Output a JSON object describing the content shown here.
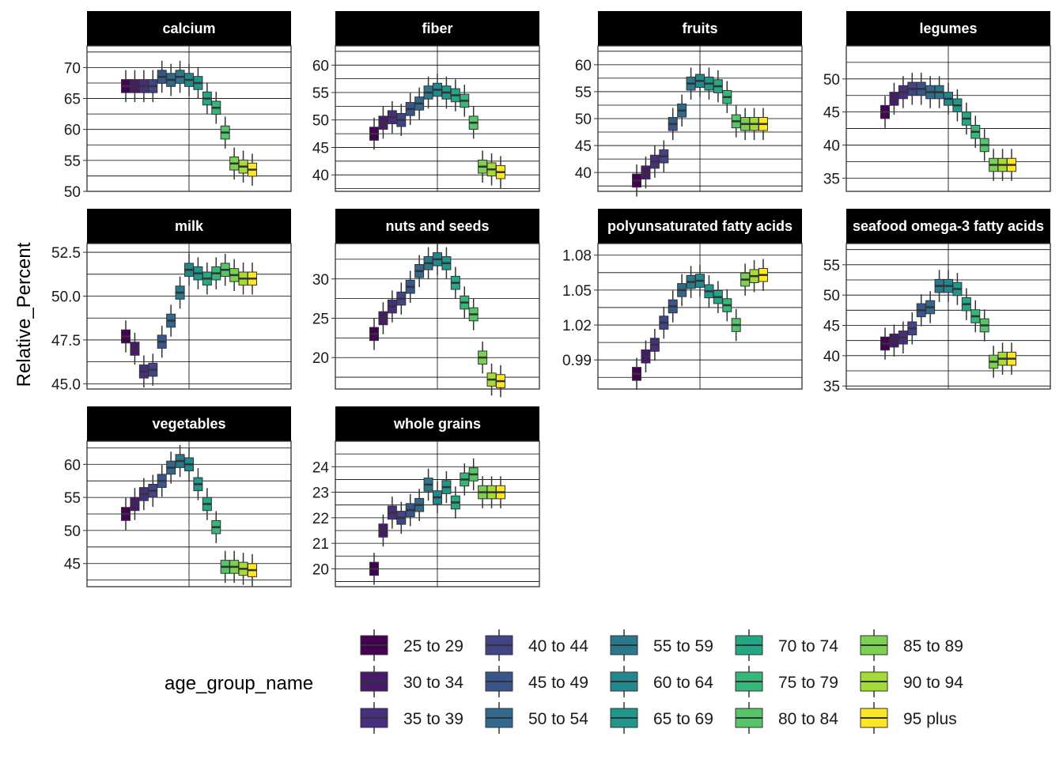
{
  "chart_data": {
    "type": "box",
    "ylabel": "Relative_Percent",
    "legend": {
      "title": "age_group_name",
      "placement": "bottom",
      "entries": [
        {
          "label": "25 to 29",
          "color": "#440154"
        },
        {
          "label": "30 to 34",
          "color": "#481A6C"
        },
        {
          "label": "35 to 39",
          "color": "#472F7D"
        },
        {
          "label": "40 to 44",
          "color": "#414487"
        },
        {
          "label": "45 to 49",
          "color": "#39568C"
        },
        {
          "label": "50 to 54",
          "color": "#31688E"
        },
        {
          "label": "55 to 59",
          "color": "#2A788E"
        },
        {
          "label": "60 to 64",
          "color": "#23888E"
        },
        {
          "label": "65 to 69",
          "color": "#1F988B"
        },
        {
          "label": "70 to 74",
          "color": "#22A884"
        },
        {
          "label": "75 to 79",
          "color": "#35B779"
        },
        {
          "label": "80 to 84",
          "color": "#54C568"
        },
        {
          "label": "85 to 89",
          "color": "#7AD151"
        },
        {
          "label": "90 to 94",
          "color": "#A5DB36"
        },
        {
          "label": "95 plus",
          "color": "#FDE725"
        }
      ]
    },
    "panels": [
      {
        "title": "calcium",
        "ylim": [
          50,
          73.5
        ],
        "ticks": [
          50,
          55,
          60,
          65,
          70
        ],
        "tick_labels": [
          "50",
          "55",
          "60",
          "65",
          "70"
        ],
        "medians": [
          67,
          67,
          67,
          67,
          68.5,
          68,
          68.5,
          68,
          67.5,
          65,
          63.5,
          59.5,
          54.5,
          54,
          53.5
        ]
      },
      {
        "title": "fiber",
        "ylim": [
          37,
          63.5
        ],
        "ticks": [
          40,
          45,
          50,
          55,
          60
        ],
        "tick_labels": [
          "40",
          "45",
          "50",
          "55",
          "60"
        ],
        "medians": [
          47.5,
          49.5,
          50.5,
          50,
          52,
          53,
          55,
          55.5,
          55,
          54.5,
          53.5,
          49.5,
          41.5,
          41,
          40.5
        ]
      },
      {
        "title": "fruits",
        "ylim": [
          36.5,
          63.5
        ],
        "ticks": [
          40,
          45,
          50,
          55,
          60
        ],
        "tick_labels": [
          "40",
          "45",
          "50",
          "55",
          "60"
        ],
        "medians": [
          38.5,
          40,
          42,
          43,
          49,
          51.5,
          56.5,
          57,
          56.5,
          56,
          54,
          49.5,
          49,
          49,
          49
        ]
      },
      {
        "title": "legumes",
        "ylim": [
          33,
          55
        ],
        "ticks": [
          35,
          40,
          45,
          50
        ],
        "tick_labels": [
          "35",
          "40",
          "45",
          "50"
        ],
        "medians": [
          45,
          47,
          48,
          48.5,
          48.5,
          48,
          48,
          47,
          46,
          44,
          42,
          40,
          37,
          37,
          37
        ]
      },
      {
        "title": "milk",
        "ylim": [
          44.7,
          53
        ],
        "ticks": [
          45,
          47.5,
          50,
          52.5
        ],
        "tick_labels": [
          "45.0",
          "47.5",
          "50.0",
          "52.5"
        ],
        "medians": [
          47.7,
          47,
          45.7,
          45.8,
          47.4,
          48.6,
          50.2,
          51.5,
          51.3,
          51,
          51.3,
          51.5,
          51.2,
          51,
          51
        ]
      },
      {
        "title": "nuts and seeds",
        "ylim": [
          16,
          34.5
        ],
        "ticks": [
          20,
          25,
          30
        ],
        "tick_labels": [
          "20",
          "25",
          "30"
        ],
        "medians": [
          23,
          25,
          26.5,
          27.5,
          29,
          31,
          32,
          32.5,
          32,
          29.5,
          27,
          25.5,
          20,
          17.2,
          17
        ]
      },
      {
        "title": "polyunsaturated fatty acids",
        "ylim": [
          0.965,
          1.09
        ],
        "ticks": [
          0.99,
          1.02,
          1.05,
          1.08
        ],
        "tick_labels": [
          "0.99",
          "1.02",
          "1.05",
          "1.08"
        ],
        "medians": [
          0.978,
          0.993,
          1.003,
          1.022,
          1.036,
          1.05,
          1.057,
          1.058,
          1.049,
          1.044,
          1.037,
          1.02,
          1.059,
          1.062,
          1.063
        ]
      },
      {
        "title": "seafood omega-3 fatty acids",
        "ylim": [
          34.5,
          58.5
        ],
        "ticks": [
          35,
          40,
          45,
          50,
          55
        ],
        "tick_labels": [
          "35",
          "40",
          "45",
          "50",
          "55"
        ],
        "medians": [
          42,
          42.5,
          43,
          44.5,
          47.5,
          48,
          51.5,
          51.5,
          51,
          48.5,
          46.5,
          45,
          39,
          39.5,
          39.5
        ]
      },
      {
        "title": "vegetables",
        "ylim": [
          41.5,
          63.5
        ],
        "ticks": [
          45,
          50,
          55,
          60
        ],
        "tick_labels": [
          "45",
          "50",
          "55",
          "60"
        ],
        "medians": [
          52.5,
          54,
          55.5,
          56,
          57.5,
          59.5,
          60.5,
          60,
          57,
          54,
          50.5,
          44.5,
          44.5,
          44.2,
          44
        ]
      },
      {
        "title": "whole grains",
        "ylim": [
          19.3,
          25
        ],
        "ticks": [
          20,
          21,
          22,
          23,
          24
        ],
        "tick_labels": [
          "20",
          "21",
          "22",
          "23",
          "24"
        ],
        "medians": [
          20,
          21.5,
          22.2,
          22,
          22.3,
          22.5,
          23.3,
          22.8,
          23.2,
          22.6,
          23.5,
          23.7,
          23,
          23,
          23
        ]
      }
    ]
  }
}
